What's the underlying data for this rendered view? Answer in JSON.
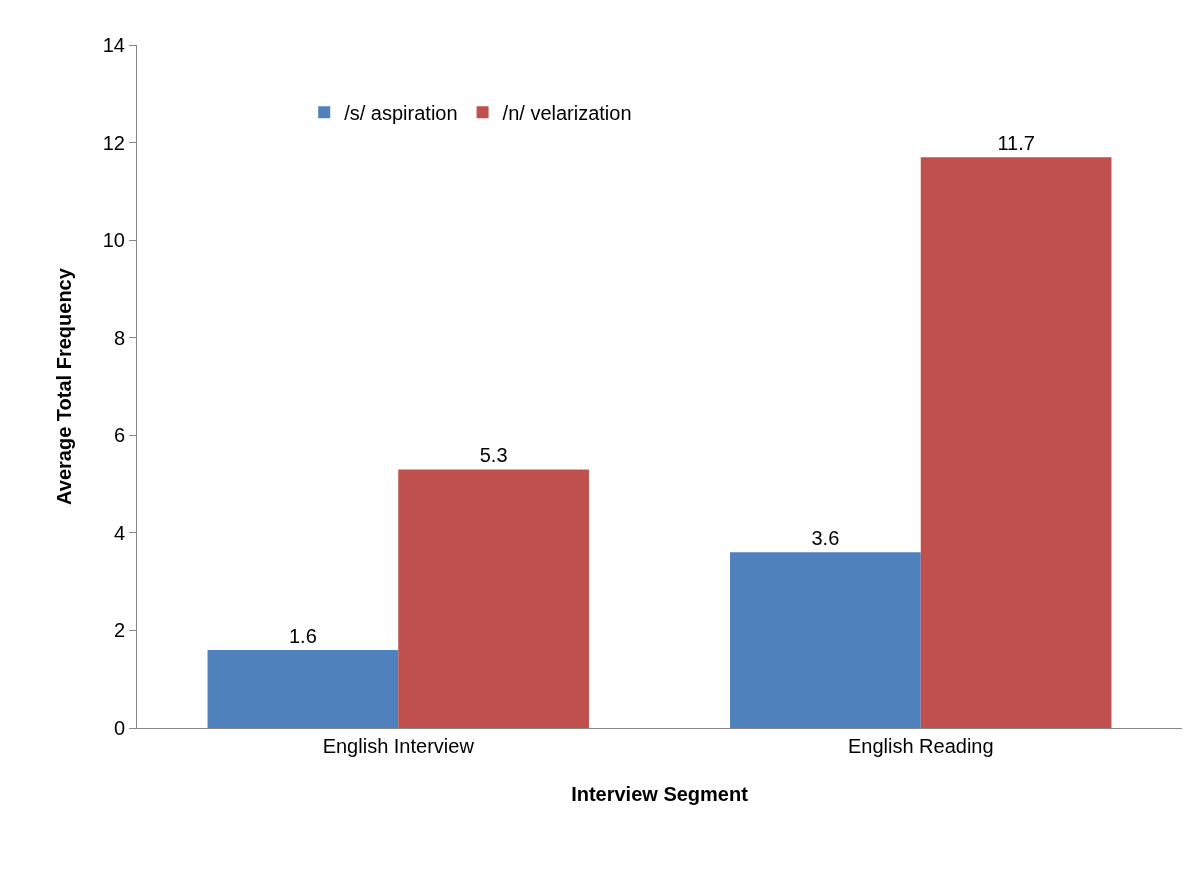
{
  "chart_data": {
    "type": "bar",
    "xlabel": "Interview Segment",
    "ylabel": "Average Total Frequency",
    "categories": [
      "English Interview",
      "English Reading"
    ],
    "series": [
      {
        "name": "/s/ aspiration",
        "color": "#4f81bd",
        "values": [
          1.6,
          3.6
        ]
      },
      {
        "name": "/n/ velarization",
        "color": "#c0504d",
        "values": [
          5.3,
          11.7
        ]
      }
    ],
    "ylim": [
      0,
      14
    ],
    "yticks": [
      0,
      2,
      4,
      6,
      8,
      10,
      12,
      14
    ],
    "grid": false,
    "legend": "top left",
    "data_labels": true
  }
}
